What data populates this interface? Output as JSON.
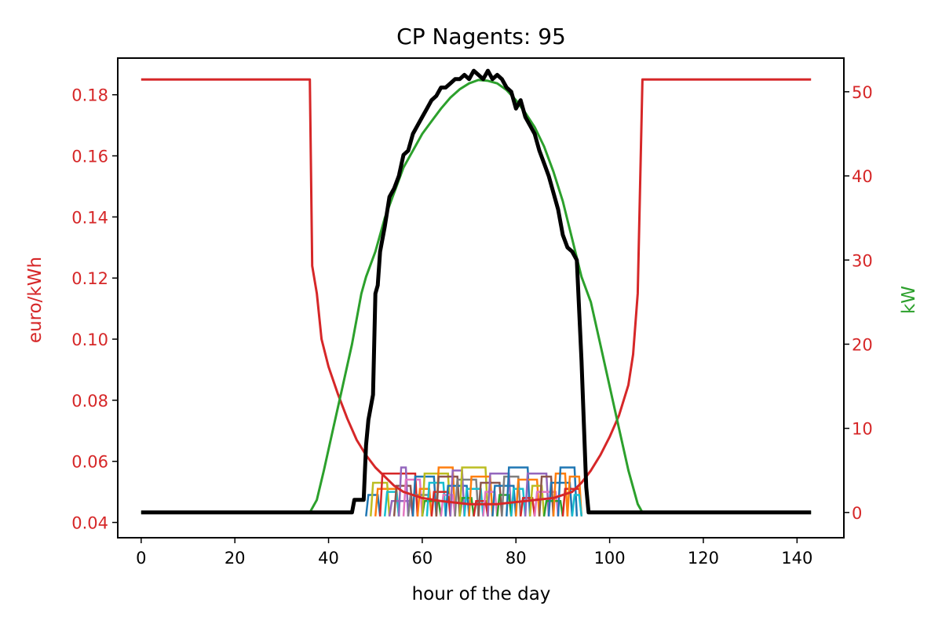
{
  "chart_data": {
    "type": "line",
    "title": "CP Nagents: 95",
    "xlabel": "hour of the day",
    "ylabel_left": "euro/kWh",
    "ylabel_right": "kW",
    "xlim": [
      -5,
      150
    ],
    "ylim_left": [
      0.035,
      0.192
    ],
    "ylim_right": [
      -3,
      54
    ],
    "x_ticks": [
      0,
      20,
      40,
      60,
      80,
      100,
      120,
      140
    ],
    "y_left_ticks": [
      0.04,
      0.06,
      0.08,
      0.1,
      0.12,
      0.14,
      0.16,
      0.18
    ],
    "y_left_tick_labels": [
      "0.04",
      "0.06",
      "0.08",
      "0.10",
      "0.12",
      "0.14",
      "0.16",
      "0.18"
    ],
    "y_right_ticks": [
      0,
      10,
      20,
      30,
      40,
      50
    ],
    "colors": {
      "price": "#d62728",
      "kw": "#2ca02c",
      "total": "#000000",
      "left_axis": "#d62728",
      "right_axis": "#d62728",
      "right_label": "#2ca02c",
      "agents": [
        "#1f77b4",
        "#ff7f0e",
        "#2ca02c",
        "#d62728",
        "#9467bd",
        "#8c564b",
        "#e377c2",
        "#7f7f7f",
        "#bcbd22",
        "#17becf"
      ]
    },
    "series": [
      {
        "axis": "left",
        "color": "#d62728",
        "points": [
          [
            0,
            0.185
          ],
          [
            36,
            0.185
          ],
          [
            36.5,
            0.124
          ],
          [
            37.5,
            0.115
          ],
          [
            38.5,
            0.1
          ],
          [
            40,
            0.091
          ],
          [
            42,
            0.082
          ],
          [
            44,
            0.074
          ],
          [
            46,
            0.067
          ],
          [
            48,
            0.062
          ],
          [
            50,
            0.058
          ],
          [
            52,
            0.055
          ],
          [
            54,
            0.052
          ],
          [
            56,
            0.05
          ],
          [
            58,
            0.049
          ],
          [
            60,
            0.048
          ],
          [
            64,
            0.047
          ],
          [
            70,
            0.046
          ],
          [
            76,
            0.046
          ],
          [
            82,
            0.047
          ],
          [
            88,
            0.048
          ],
          [
            92,
            0.05
          ],
          [
            94,
            0.053
          ],
          [
            96,
            0.057
          ],
          [
            98,
            0.062
          ],
          [
            100,
            0.068
          ],
          [
            102,
            0.075
          ],
          [
            104,
            0.085
          ],
          [
            105,
            0.095
          ],
          [
            106,
            0.115
          ],
          [
            107,
            0.185
          ],
          [
            143,
            0.185
          ]
        ]
      },
      {
        "axis": "right",
        "color": "#2ca02c",
        "points": [
          [
            0,
            0
          ],
          [
            36,
            0
          ],
          [
            37.5,
            1.5
          ],
          [
            39,
            5
          ],
          [
            41,
            10
          ],
          [
            43,
            15
          ],
          [
            45,
            20
          ],
          [
            47,
            26
          ],
          [
            48,
            28
          ],
          [
            50,
            31
          ],
          [
            52,
            35
          ],
          [
            54,
            38
          ],
          [
            56,
            41
          ],
          [
            58,
            43
          ],
          [
            60,
            45
          ],
          [
            62,
            46.5
          ],
          [
            64,
            48
          ],
          [
            66,
            49.3
          ],
          [
            68,
            50.3
          ],
          [
            70,
            51
          ],
          [
            72,
            51.4
          ],
          [
            74,
            51.3
          ],
          [
            76,
            51
          ],
          [
            78,
            50.2
          ],
          [
            80,
            49
          ],
          [
            82,
            47.5
          ],
          [
            84,
            45.8
          ],
          [
            86,
            43.5
          ],
          [
            88,
            40.5
          ],
          [
            90,
            37
          ],
          [
            92,
            32.5
          ],
          [
            94,
            28
          ],
          [
            96,
            25
          ],
          [
            98,
            20
          ],
          [
            100,
            15
          ],
          [
            102,
            10
          ],
          [
            104,
            5
          ],
          [
            106,
            1
          ],
          [
            107,
            0
          ],
          [
            143,
            0
          ]
        ]
      },
      {
        "axis": "right",
        "color": "#000000",
        "width": 5,
        "points": [
          [
            0,
            0
          ],
          [
            45,
            0
          ],
          [
            45.5,
            1.5
          ],
          [
            47,
            1.5
          ],
          [
            47.5,
            1.5
          ],
          [
            48,
            8
          ],
          [
            48.5,
            11
          ],
          [
            49.5,
            14
          ],
          [
            50,
            26
          ],
          [
            50.5,
            27
          ],
          [
            51,
            31
          ],
          [
            52,
            34
          ],
          [
            53,
            37.5
          ],
          [
            54,
            38.5
          ],
          [
            55,
            40
          ],
          [
            56,
            42.5
          ],
          [
            57,
            43
          ],
          [
            58,
            45
          ],
          [
            59,
            46
          ],
          [
            60,
            47
          ],
          [
            61,
            48
          ],
          [
            62,
            49
          ],
          [
            63,
            49.5
          ],
          [
            64,
            50.5
          ],
          [
            65,
            50.5
          ],
          [
            66,
            51
          ],
          [
            67,
            51.5
          ],
          [
            68,
            51.5
          ],
          [
            69,
            52
          ],
          [
            70,
            51.5
          ],
          [
            71,
            52.5
          ],
          [
            72,
            52
          ],
          [
            73,
            51.5
          ],
          [
            74,
            52.5
          ],
          [
            75,
            51.5
          ],
          [
            76,
            52
          ],
          [
            77,
            51.5
          ],
          [
            78,
            50.5
          ],
          [
            79,
            50
          ],
          [
            80,
            48
          ],
          [
            81,
            49
          ],
          [
            82,
            47
          ],
          [
            83,
            46
          ],
          [
            84,
            45
          ],
          [
            85,
            43
          ],
          [
            86,
            41.5
          ],
          [
            87,
            40
          ],
          [
            88,
            38
          ],
          [
            89,
            36
          ],
          [
            90,
            33
          ],
          [
            91,
            31.5
          ],
          [
            92,
            31
          ],
          [
            93,
            30
          ],
          [
            94,
            18
          ],
          [
            95,
            3
          ],
          [
            95.5,
            0
          ],
          [
            143,
            0
          ]
        ]
      }
    ],
    "agent_blocks": [
      {
        "x0": 48,
        "x1": 51,
        "y": 0.049,
        "c": 0
      },
      {
        "x0": 50,
        "x1": 55,
        "y": 0.051,
        "c": 1
      },
      {
        "x0": 49,
        "x1": 53,
        "y": 0.053,
        "c": 8
      },
      {
        "x0": 51,
        "x1": 59,
        "y": 0.056,
        "c": 3
      },
      {
        "x0": 52,
        "x1": 55,
        "y": 0.05,
        "c": 9
      },
      {
        "x0": 53,
        "x1": 58,
        "y": 0.047,
        "c": 4
      },
      {
        "x0": 54,
        "x1": 58,
        "y": 0.052,
        "c": 5
      },
      {
        "x0": 55,
        "x1": 57,
        "y": 0.058,
        "c": 4
      },
      {
        "x0": 56,
        "x1": 60,
        "y": 0.054,
        "c": 6
      },
      {
        "x0": 57,
        "x1": 62,
        "y": 0.049,
        "c": 7
      },
      {
        "x0": 58,
        "x1": 63,
        "y": 0.055,
        "c": 0
      },
      {
        "x0": 59,
        "x1": 62,
        "y": 0.051,
        "c": 1
      },
      {
        "x0": 60,
        "x1": 64,
        "y": 0.047,
        "c": 2
      },
      {
        "x0": 60,
        "x1": 66,
        "y": 0.056,
        "c": 8
      },
      {
        "x0": 61,
        "x1": 65,
        "y": 0.053,
        "c": 9
      },
      {
        "x0": 62,
        "x1": 66,
        "y": 0.05,
        "c": 3
      },
      {
        "x0": 63,
        "x1": 67,
        "y": 0.058,
        "c": 1
      },
      {
        "x0": 63,
        "x1": 68,
        "y": 0.055,
        "c": 5
      },
      {
        "x0": 64,
        "x1": 67,
        "y": 0.049,
        "c": 6
      },
      {
        "x0": 65,
        "x1": 70,
        "y": 0.052,
        "c": 0
      },
      {
        "x0": 66,
        "x1": 69,
        "y": 0.057,
        "c": 4
      },
      {
        "x0": 67,
        "x1": 72,
        "y": 0.054,
        "c": 7
      },
      {
        "x0": 68,
        "x1": 71,
        "y": 0.048,
        "c": 2
      },
      {
        "x0": 68,
        "x1": 74,
        "y": 0.058,
        "c": 8
      },
      {
        "x0": 69,
        "x1": 73,
        "y": 0.051,
        "c": 9
      },
      {
        "x0": 70,
        "x1": 75,
        "y": 0.055,
        "c": 1
      },
      {
        "x0": 71,
        "x1": 74,
        "y": 0.047,
        "c": 3
      },
      {
        "x0": 72,
        "x1": 77,
        "y": 0.053,
        "c": 5
      },
      {
        "x0": 73,
        "x1": 76,
        "y": 0.05,
        "c": 6
      },
      {
        "x0": 74,
        "x1": 79,
        "y": 0.056,
        "c": 4
      },
      {
        "x0": 75,
        "x1": 80,
        "y": 0.052,
        "c": 0
      },
      {
        "x0": 76,
        "x1": 79,
        "y": 0.049,
        "c": 2
      },
      {
        "x0": 77,
        "x1": 81,
        "y": 0.055,
        "c": 7
      },
      {
        "x0": 78,
        "x1": 83,
        "y": 0.058,
        "c": 0
      },
      {
        "x0": 79,
        "x1": 82,
        "y": 0.051,
        "c": 9
      },
      {
        "x0": 80,
        "x1": 85,
        "y": 0.054,
        "c": 1
      },
      {
        "x0": 81,
        "x1": 84,
        "y": 0.048,
        "c": 3
      },
      {
        "x0": 82,
        "x1": 87,
        "y": 0.056,
        "c": 4
      },
      {
        "x0": 83,
        "x1": 86,
        "y": 0.052,
        "c": 8
      },
      {
        "x0": 84,
        "x1": 89,
        "y": 0.05,
        "c": 6
      },
      {
        "x0": 85,
        "x1": 88,
        "y": 0.055,
        "c": 5
      },
      {
        "x0": 86,
        "x1": 90,
        "y": 0.047,
        "c": 2
      },
      {
        "x0": 87,
        "x1": 92,
        "y": 0.053,
        "c": 0
      },
      {
        "x0": 88,
        "x1": 91,
        "y": 0.056,
        "c": 1
      },
      {
        "x0": 89,
        "x1": 93,
        "y": 0.058,
        "c": 0
      },
      {
        "x0": 90,
        "x1": 94,
        "y": 0.051,
        "c": 3
      },
      {
        "x0": 91,
        "x1": 94,
        "y": 0.055,
        "c": 1
      },
      {
        "x0": 92,
        "x1": 94,
        "y": 0.049,
        "c": 9
      }
    ]
  }
}
